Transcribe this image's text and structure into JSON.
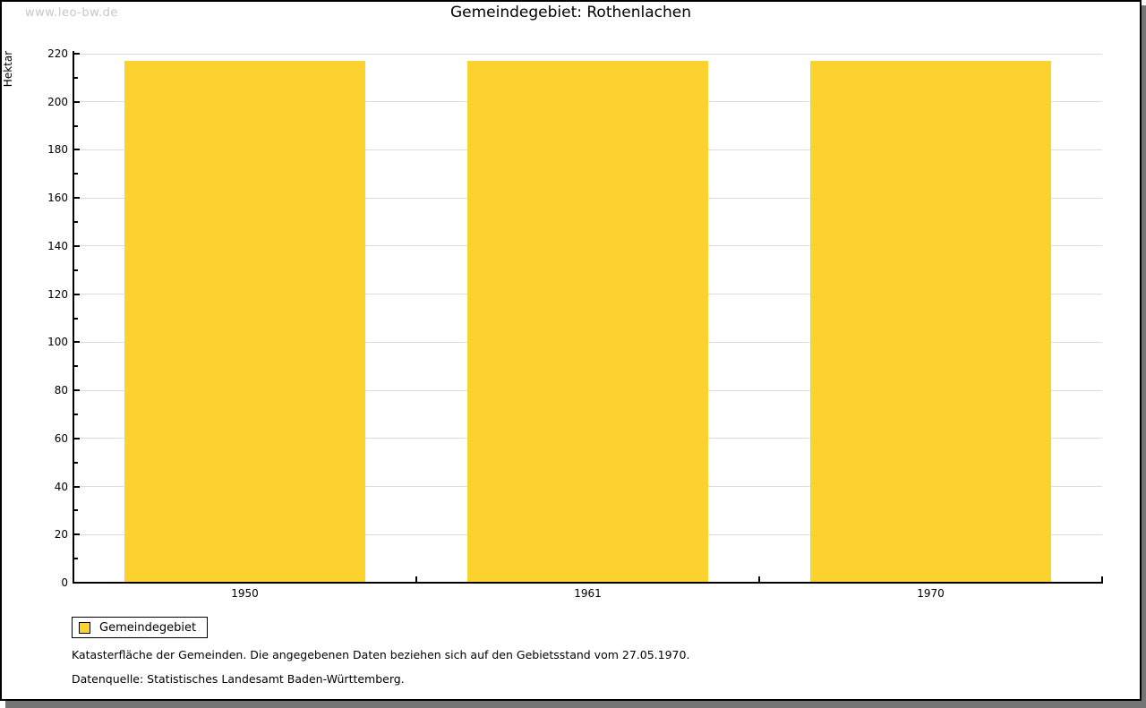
{
  "watermark": "www.leo-bw.de",
  "title": "Gemeindegebiet: Rothenlachen",
  "legend": {
    "label": "Gemeindegebiet",
    "swatch_color": "#FCD32E"
  },
  "footnotes": [
    "Katasterfläche der Gemeinden. Die angegebenen Daten beziehen sich auf den Gebietsstand vom 27.05.1970.",
    "Datenquelle: Statistisches Landesamt Baden-Württemberg."
  ],
  "chart_data": {
    "type": "bar",
    "title": "Gemeindegebiet: Rothenlachen",
    "categories": [
      "1950",
      "1961",
      "1970"
    ],
    "series": [
      {
        "name": "Gemeindegebiet",
        "values": [
          217,
          217,
          217
        ],
        "color": "#FCD32E"
      }
    ],
    "xlabel": "",
    "ylabel": "Hektar",
    "ylim": [
      0,
      220
    ],
    "ytick_step": 20,
    "yminor_step": 10,
    "grid": true,
    "gridline_color": "#DCDCDC",
    "axis_color": "#000000",
    "legend_position": "bottom-left",
    "unit": "Hektar"
  }
}
